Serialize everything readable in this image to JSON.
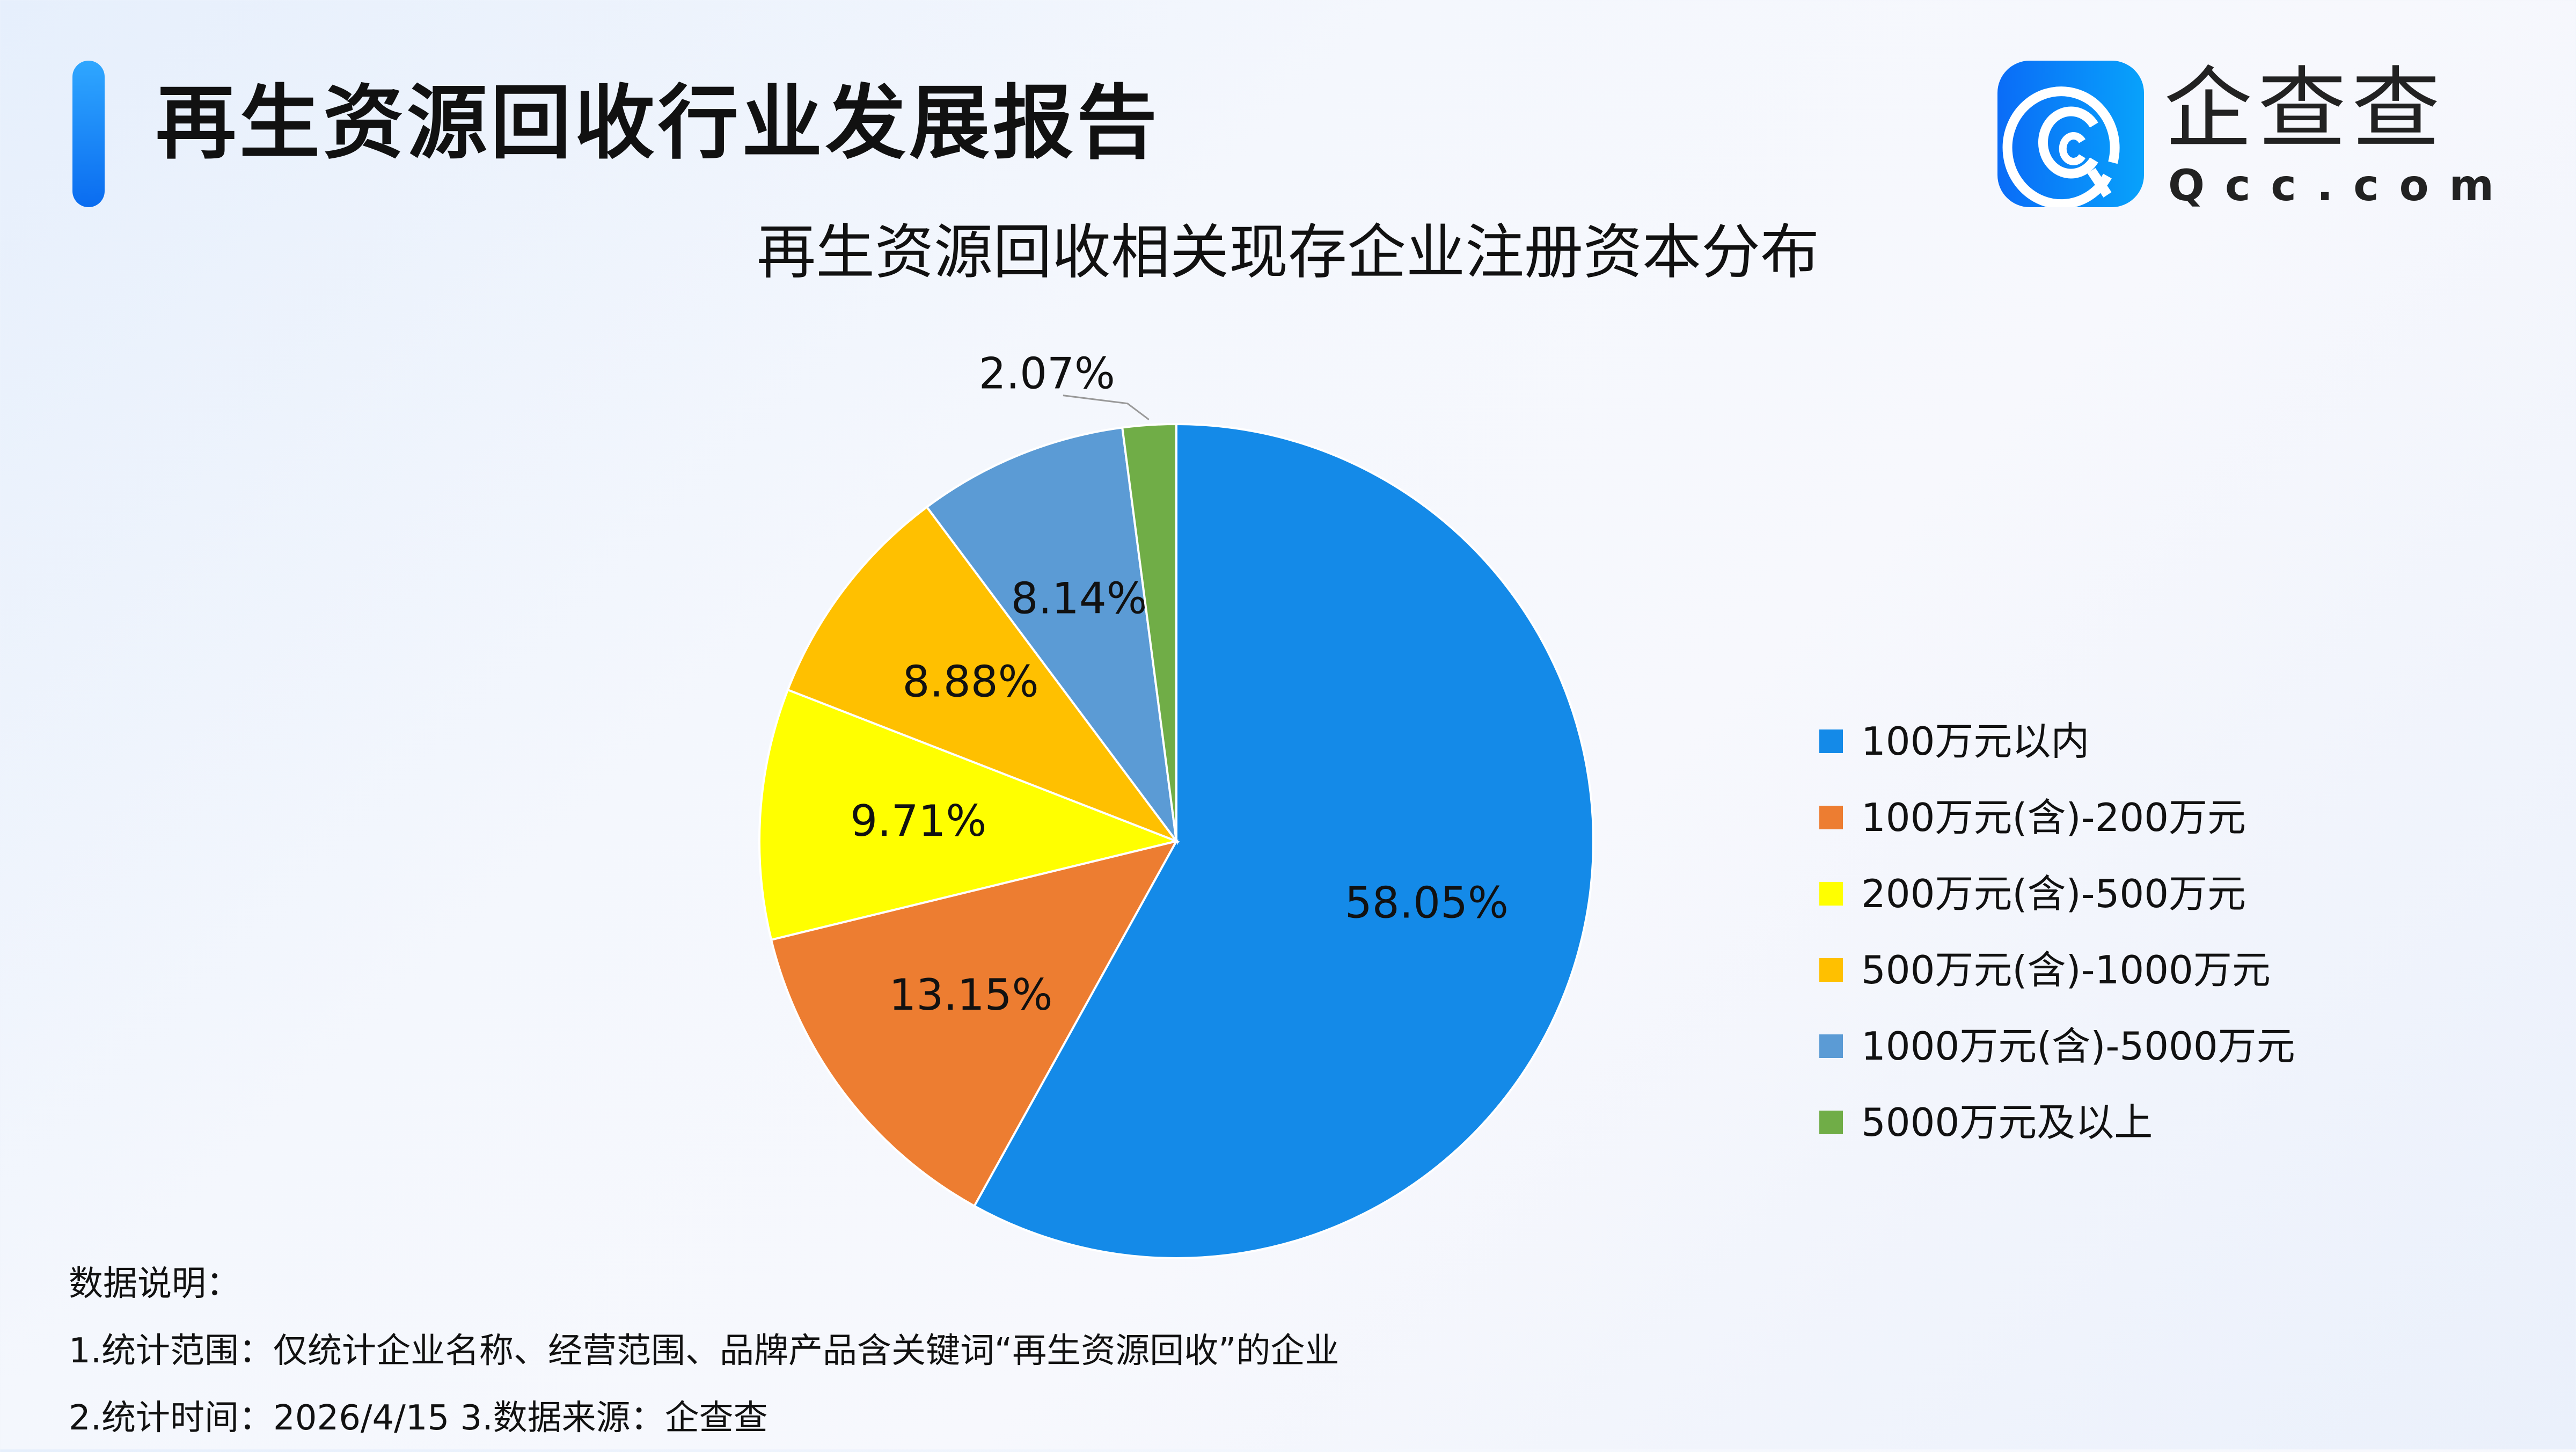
{
  "header": {
    "title": "再生资源回收行业发展报告"
  },
  "logo": {
    "name_cn": "企查查",
    "name_en": "Qcc.com",
    "icon": "qcc-logo-icon"
  },
  "chart_data": {
    "type": "pie",
    "title": "再生资源回收相关现存企业注册资本分布",
    "categories": [
      "100万元以内",
      "100万元(含)-200万元",
      "200万元(含)-500万元",
      "500万元(含)-1000万元",
      "1000万元(含)-5000万元",
      "5000万元及以上"
    ],
    "values": [
      58.05,
      13.15,
      9.71,
      8.88,
      8.14,
      2.07
    ],
    "labels": [
      "58.05%",
      "13.15%",
      "9.71%",
      "8.88%",
      "8.14%",
      "2.07%"
    ],
    "colors": [
      "#148ae8",
      "#ed7d31",
      "#ffff00",
      "#ffc000",
      "#5b9bd5",
      "#70ad47"
    ],
    "start_angle": "12 o'clock",
    "direction": "clockwise",
    "legend_position": "right"
  },
  "notes": {
    "heading": "数据说明：",
    "line1": "1.统计范围：仅统计企业名称、经营范围、品牌产品含关键词“再生资源回收”的企业",
    "line2": "2.统计时间：2026/4/15  3.数据来源：企查查"
  }
}
